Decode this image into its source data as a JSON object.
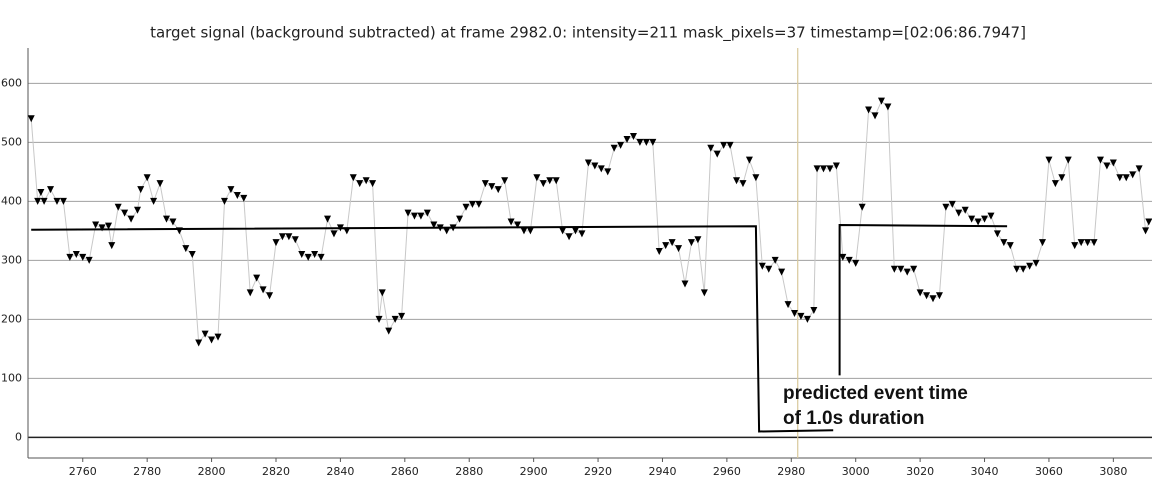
{
  "chart_data": {
    "type": "scatter",
    "title": "target signal (background subtracted) at frame 2982.0: intensity=211 mask_pixels=37 timestamp=[02:06:86.7947]",
    "xlim": [
      2743,
      3092
    ],
    "ylim": [
      -35,
      660
    ],
    "xticks": [
      2760,
      2780,
      2800,
      2820,
      2840,
      2860,
      2880,
      2900,
      2920,
      2940,
      2960,
      2980,
      3000,
      3020,
      3040,
      3060,
      3080
    ],
    "yticks": [
      0,
      100,
      200,
      300,
      400,
      500,
      600
    ],
    "grid": true,
    "grid_color": "#a0a0a0",
    "zero_line_color": "#222222",
    "current_frame": 2982,
    "current_frame_color": "#d8c89a",
    "series": [
      {
        "color": "#000000",
        "line_color": "#c8c8c8",
        "marker": "triangle-down",
        "x": [
          2744,
          2746,
          2747,
          2748,
          2750,
          2752,
          2754,
          2756,
          2758,
          2760,
          2762,
          2764,
          2766,
          2768,
          2769,
          2771,
          2773,
          2775,
          2777,
          2778,
          2780,
          2782,
          2784,
          2786,
          2788,
          2790,
          2792,
          2794,
          2796,
          2798,
          2800,
          2802,
          2804,
          2806,
          2808,
          2810,
          2812,
          2814,
          2816,
          2818,
          2820,
          2822,
          2824,
          2826,
          2828,
          2830,
          2832,
          2834,
          2836,
          2838,
          2840,
          2842,
          2844,
          2846,
          2848,
          2850,
          2852,
          2853,
          2855,
          2857,
          2859,
          2861,
          2863,
          2865,
          2867,
          2869,
          2871,
          2873,
          2875,
          2877,
          2879,
          2881,
          2883,
          2885,
          2887,
          2889,
          2891,
          2893,
          2895,
          2897,
          2899,
          2901,
          2903,
          2905,
          2907,
          2909,
          2911,
          2913,
          2915,
          2917,
          2919,
          2921,
          2923,
          2925,
          2927,
          2929,
          2931,
          2933,
          2935,
          2937,
          2939,
          2941,
          2943,
          2945,
          2947,
          2949,
          2951,
          2953,
          2955,
          2957,
          2959,
          2961,
          2963,
          2965,
          2967,
          2969,
          2971,
          2973,
          2975,
          2977,
          2979,
          2981,
          2983,
          2985,
          2987,
          2988,
          2990,
          2992,
          2994,
          2996,
          2998,
          3000,
          3002,
          3004,
          3006,
          3008,
          3010,
          3012,
          3014,
          3016,
          3018,
          3020,
          3022,
          3024,
          3026,
          3028,
          3030,
          3032,
          3034,
          3036,
          3038,
          3040,
          3042,
          3044,
          3046,
          3048,
          3050,
          3052,
          3054,
          3056,
          3058,
          3060,
          3062,
          3064,
          3066,
          3068,
          3070,
          3072,
          3074,
          3076,
          3078,
          3080,
          3082,
          3084,
          3086,
          3088,
          3090,
          3091
        ],
        "values": [
          540,
          400,
          415,
          400,
          420,
          400,
          400,
          305,
          310,
          305,
          300,
          360,
          355,
          358,
          325,
          390,
          380,
          370,
          385,
          420,
          440,
          400,
          430,
          370,
          365,
          350,
          320,
          310,
          160,
          175,
          165,
          170,
          400,
          420,
          410,
          405,
          245,
          270,
          250,
          240,
          330,
          340,
          340,
          335,
          310,
          305,
          310,
          305,
          370,
          345,
          355,
          350,
          440,
          430,
          435,
          430,
          200,
          245,
          180,
          200,
          205,
          380,
          375,
          375,
          380,
          360,
          355,
          350,
          355,
          370,
          390,
          395,
          395,
          430,
          425,
          420,
          435,
          365,
          360,
          350,
          350,
          440,
          430,
          435,
          435,
          350,
          340,
          350,
          345,
          465,
          460,
          455,
          450,
          490,
          495,
          505,
          510,
          500,
          500,
          500,
          315,
          325,
          330,
          320,
          260,
          330,
          335,
          245,
          490,
          480,
          495,
          495,
          435,
          430,
          470,
          440,
          290,
          285,
          300,
          280,
          225,
          210,
          205,
          200,
          215,
          455,
          455,
          455,
          460,
          305,
          300,
          295,
          390,
          555,
          545,
          570,
          560,
          285,
          285,
          280,
          285,
          245,
          240,
          235,
          240,
          390,
          395,
          380,
          385,
          370,
          365,
          370,
          375,
          345,
          330,
          325,
          285,
          285,
          290,
          295,
          330,
          470,
          430,
          440,
          470,
          325,
          330,
          330,
          330,
          470,
          460,
          465,
          440,
          440,
          445,
          455,
          350,
          365
        ]
      },
      {
        "color": "#000000",
        "marker": "none",
        "x": [
          2744,
          2969,
          2970,
          2993,
          2992,
          2995,
          2995,
          3047
        ],
        "values": [
          352,
          358,
          10,
          12,
          null,
          105,
          360,
          358
        ]
      }
    ],
    "annotations": [
      "predicted event time",
      "of 1.0s duration"
    ]
  }
}
